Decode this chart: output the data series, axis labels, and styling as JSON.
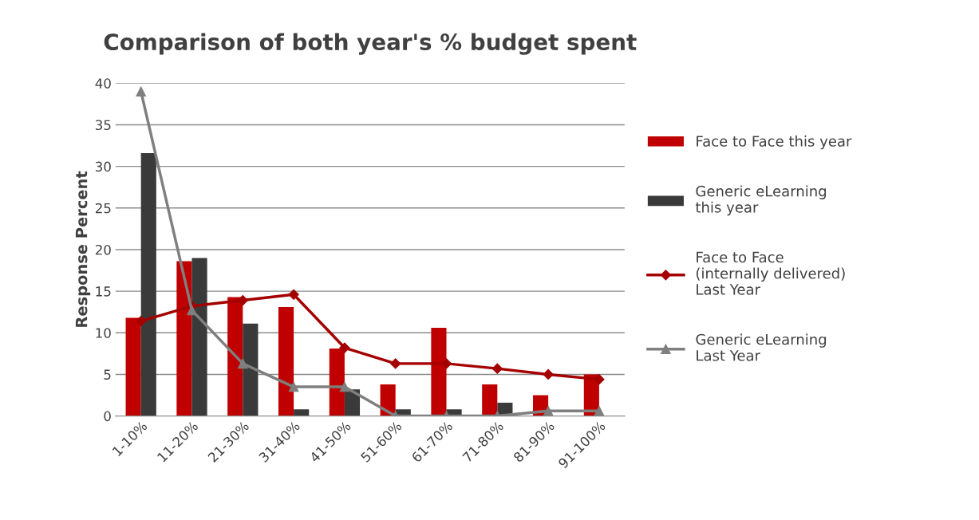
{
  "chart_data": {
    "type": "bar",
    "title": "Comparison of both year's % budget spent",
    "ylabel": "Response Percent",
    "categories": [
      "1-10%",
      "11-20%",
      "21-30%",
      "31-40%",
      "41-50%",
      "51-60%",
      "61-70%",
      "71-80%",
      "81-90%",
      "91-100%"
    ],
    "series": [
      {
        "name": "Face to Face this year",
        "color": "#c00000",
        "values": [
          11.8,
          18.6,
          14.3,
          13.1,
          8.1,
          3.8,
          10.6,
          3.8,
          2.5,
          5.0
        ]
      },
      {
        "name": "Generic eLearning\nthis year",
        "color": "#3a3a3a",
        "values": [
          31.6,
          19.0,
          11.1,
          0.8,
          3.2,
          0.8,
          0.8,
          1.6,
          null,
          0
        ]
      },
      {
        "name": "Face to Face\n(internally delivered)\nLast Year",
        "type": "line",
        "marker": "diamond",
        "color": "#a50000",
        "values": [
          11.4,
          13.2,
          13.9,
          14.6,
          8.2,
          6.3,
          6.3,
          5.7,
          5.0,
          4.4
        ]
      },
      {
        "name": "Generic eLearning\nLast Year",
        "type": "line",
        "marker": "triangle",
        "color": "#7f7f7f",
        "values": [
          39,
          12.7,
          6.3,
          3.5,
          3.5,
          0,
          0,
          0,
          0.6,
          0.6
        ]
      }
    ],
    "ylim": [
      0,
      40
    ],
    "yticks": [
      0,
      5,
      10,
      15,
      20,
      25,
      30,
      35,
      40
    ],
    "grid": "y",
    "legend": "right"
  }
}
